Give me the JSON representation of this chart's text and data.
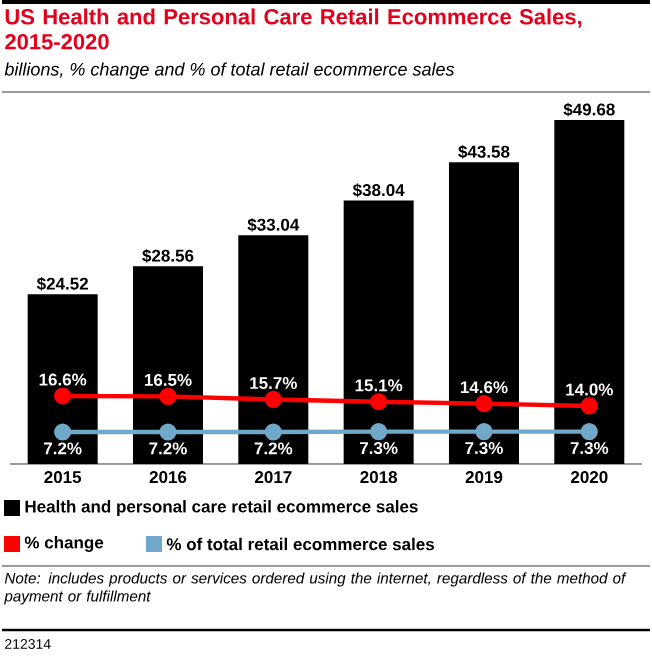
{
  "chart_data": {
    "type": "bar",
    "title": "US Health and Personal Care Retail Ecommerce Sales, 2015-2020",
    "subtitle": "billions, % change and % of total retail ecommerce sales",
    "categories": [
      "2015",
      "2016",
      "2017",
      "2018",
      "2019",
      "2020"
    ],
    "series": [
      {
        "name": "Health and personal care retail ecommerce sales",
        "color": "#000000",
        "values": [
          24.52,
          28.56,
          33.04,
          38.04,
          43.58,
          49.68
        ],
        "value_labels": [
          "$24.52",
          "$28.56",
          "$33.04",
          "$38.04",
          "$43.58",
          "$49.68"
        ]
      },
      {
        "name": "% change",
        "type": "line",
        "axis": "y2",
        "color": "#ff0000",
        "values": [
          16.6,
          16.5,
          15.7,
          15.1,
          14.6,
          14.0
        ],
        "value_labels": [
          "16.6%",
          "16.5%",
          "15.7%",
          "15.1%",
          "14.6%",
          "14.0%"
        ]
      },
      {
        "name": "% of total retail ecommerce sales",
        "type": "line",
        "axis": "y2",
        "color": "#6fa8c8",
        "values": [
          7.2,
          7.2,
          7.2,
          7.3,
          7.3,
          7.3
        ],
        "value_labels": [
          "7.2%",
          "7.2%",
          "7.2%",
          "7.3%",
          "7.3%",
          "7.3%"
        ]
      }
    ],
    "tick_labels": "x",
    "marker": "circle",
    "line_style": "solid",
    "legend": "bottom",
    "annotations": [
      "Note: includes products or services ordered using the internet, regardless of the method of payment or fulfillment",
      "212314"
    ]
  }
}
